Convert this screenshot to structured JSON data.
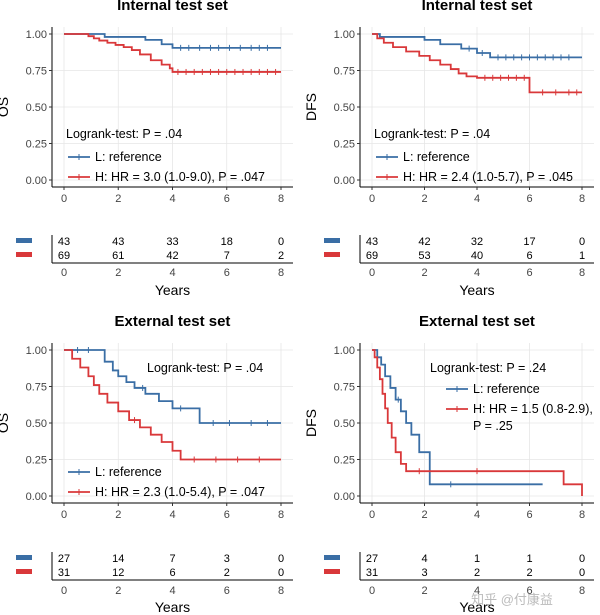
{
  "chart_data": [
    {
      "type": "line",
      "subtype": "kaplan-meier",
      "title": "Internal test set",
      "ylabel": "OS",
      "xlabel": "Years",
      "xlim": [
        0,
        8
      ],
      "ylim": [
        0,
        1
      ],
      "xticks": [
        "0",
        "2",
        "4",
        "6",
        "8"
      ],
      "yticks": [
        "0.00",
        "0.25",
        "0.50",
        "0.75",
        "1.00"
      ],
      "annotation": "Logrank-test: P =  .04",
      "annotation_anchor": "middle-left",
      "legend_anchor": "middle-left",
      "series": [
        {
          "name": "L: reference",
          "color": "#3a6ea5",
          "x": [
            0,
            1.2,
            1.5,
            2.6,
            3.0,
            3.6,
            4.0,
            8.0
          ],
          "y": [
            1.0,
            1.0,
            0.98,
            0.98,
            0.96,
            0.93,
            0.905,
            0.905
          ],
          "censor": [
            4.3,
            4.6,
            5.0,
            5.4,
            5.7,
            6.1,
            6.5,
            6.9,
            7.2,
            7.5
          ]
        },
        {
          "name": "H: HR = 3.0 (1.0-9.0), P = .047",
          "color": "#d9383a",
          "x": [
            0,
            0.6,
            0.9,
            1.1,
            1.3,
            1.6,
            1.9,
            2.2,
            2.5,
            2.8,
            3.2,
            3.6,
            3.9,
            4.0,
            8.0
          ],
          "y": [
            1.0,
            1.0,
            0.985,
            0.97,
            0.955,
            0.94,
            0.925,
            0.91,
            0.89,
            0.86,
            0.82,
            0.79,
            0.765,
            0.74,
            0.74
          ],
          "censor": [
            4.2,
            4.5,
            4.8,
            5.1,
            5.4,
            5.7,
            6.0,
            6.3,
            6.6,
            6.9,
            7.2,
            7.5,
            7.8
          ]
        }
      ],
      "risk_table": {
        "xlabel": "Years",
        "times": [
          "0",
          "2",
          "4",
          "6",
          "8"
        ],
        "rows": [
          {
            "color": "#3a6ea5",
            "counts": [
              "43",
              "43",
              "33",
              "18",
              "0"
            ]
          },
          {
            "color": "#d9383a",
            "counts": [
              "69",
              "61",
              "42",
              "7",
              "2"
            ]
          }
        ]
      }
    },
    {
      "type": "line",
      "subtype": "kaplan-meier",
      "title": "Internal test set",
      "ylabel": "DFS",
      "xlabel": "Years",
      "xlim": [
        0,
        8
      ],
      "ylim": [
        0,
        1
      ],
      "xticks": [
        "0",
        "2",
        "4",
        "6",
        "8"
      ],
      "yticks": [
        "0.00",
        "0.25",
        "0.50",
        "0.75",
        "1.00"
      ],
      "annotation": "Logrank-test: P =  .04",
      "annotation_anchor": "middle-left",
      "legend_anchor": "middle-left",
      "series": [
        {
          "name": "L: reference",
          "color": "#3a6ea5",
          "x": [
            0,
            0.3,
            1.0,
            2.0,
            2.6,
            3.4,
            4.0,
            4.5,
            8.0
          ],
          "y": [
            1.0,
            0.98,
            0.98,
            0.96,
            0.93,
            0.9,
            0.87,
            0.84,
            0.84
          ],
          "censor": [
            3.7,
            4.2,
            4.8,
            5.1,
            5.4,
            5.7,
            6.0,
            6.3,
            6.6,
            6.9,
            7.2,
            7.5
          ]
        },
        {
          "name": "H: HR = 2.4 (1.0-5.7), P =  .045",
          "color": "#d9383a",
          "x": [
            0,
            0.2,
            0.45,
            0.8,
            1.3,
            1.8,
            2.2,
            2.6,
            3.0,
            3.3,
            3.6,
            4.0,
            4.5,
            6.0,
            8.0
          ],
          "y": [
            1.0,
            0.97,
            0.94,
            0.91,
            0.88,
            0.85,
            0.82,
            0.79,
            0.76,
            0.73,
            0.71,
            0.7,
            0.7,
            0.6,
            0.6
          ],
          "censor": [
            4.3,
            4.6,
            4.9,
            5.2,
            5.5,
            5.8,
            6.5,
            7.0,
            7.5,
            7.8
          ]
        }
      ],
      "risk_table": {
        "xlabel": "Years",
        "times": [
          "0",
          "2",
          "4",
          "6",
          "8"
        ],
        "rows": [
          {
            "color": "#3a6ea5",
            "counts": [
              "43",
              "42",
              "32",
              "17",
              "0"
            ]
          },
          {
            "color": "#d9383a",
            "counts": [
              "69",
              "53",
              "40",
              "6",
              "1"
            ]
          }
        ]
      }
    },
    {
      "type": "line",
      "subtype": "kaplan-meier",
      "title": "External test set",
      "ylabel": "OS",
      "xlabel": "Years",
      "xlim": [
        0,
        8
      ],
      "ylim": [
        0,
        1
      ],
      "xticks": [
        "0",
        "2",
        "4",
        "6",
        "8"
      ],
      "yticks": [
        "0.00",
        "0.25",
        "0.50",
        "0.75",
        "1.00"
      ],
      "annotation": "Logrank-test: P =  .04",
      "annotation_anchor": "top-right",
      "legend_anchor": "bottom-left",
      "series": [
        {
          "name": "L: reference",
          "color": "#3a6ea5",
          "x": [
            0,
            1.2,
            1.5,
            1.8,
            2.0,
            2.3,
            2.6,
            3.0,
            3.5,
            4.0,
            5.0,
            8.0
          ],
          "y": [
            1.0,
            1.0,
            0.92,
            0.86,
            0.82,
            0.78,
            0.74,
            0.7,
            0.65,
            0.6,
            0.5,
            0.5
          ],
          "censor": [
            0.5,
            0.9,
            2.9,
            4.3,
            5.5,
            6.1,
            6.9,
            7.5
          ]
        },
        {
          "name": "H: HR = 2.3 (1.0-5.4), P =  .047",
          "color": "#d9383a",
          "x": [
            0,
            0.3,
            0.6,
            0.9,
            1.1,
            1.3,
            1.6,
            2.0,
            2.4,
            2.8,
            3.2,
            3.6,
            4.0,
            4.3,
            8.0
          ],
          "y": [
            1.0,
            0.94,
            0.88,
            0.82,
            0.76,
            0.7,
            0.64,
            0.58,
            0.52,
            0.47,
            0.42,
            0.37,
            0.31,
            0.25,
            0.25
          ],
          "censor": [
            2.6,
            4.8,
            5.6,
            6.4,
            7.2
          ]
        }
      ],
      "risk_table": {
        "xlabel": "Years",
        "times": [
          "0",
          "2",
          "4",
          "6",
          "8"
        ],
        "rows": [
          {
            "color": "#3a6ea5",
            "counts": [
              "27",
              "14",
              "7",
              "3",
              "0"
            ]
          },
          {
            "color": "#d9383a",
            "counts": [
              "31",
              "12",
              "6",
              "2",
              "0"
            ]
          }
        ]
      }
    },
    {
      "type": "line",
      "subtype": "kaplan-meier",
      "title": "External test set",
      "ylabel": "DFS",
      "xlabel": "Years",
      "xlim": [
        0,
        8
      ],
      "ylim": [
        0,
        1
      ],
      "xticks": [
        "0",
        "2",
        "4",
        "6",
        "8"
      ],
      "yticks": [
        "0.00",
        "0.25",
        "0.50",
        "0.75",
        "1.00"
      ],
      "annotation": "Logrank-test: P =  .24",
      "annotation_anchor": "top-right",
      "legend_anchor": "middle-right",
      "series": [
        {
          "name": "L: reference",
          "color": "#3a6ea5",
          "x": [
            0,
            0.2,
            0.35,
            0.5,
            0.7,
            0.9,
            1.1,
            1.3,
            1.5,
            1.8,
            2.2,
            6.5
          ],
          "y": [
            1.0,
            0.95,
            0.9,
            0.82,
            0.74,
            0.66,
            0.58,
            0.5,
            0.42,
            0.3,
            0.08,
            0.08
          ],
          "censor": [
            1.0,
            3.0
          ]
        },
        {
          "name": "H: HR = 1.5 (0.8-2.9),",
          "name_line2": "P =  .25",
          "color": "#d9383a",
          "x": [
            0,
            0.1,
            0.2,
            0.3,
            0.4,
            0.5,
            0.6,
            0.75,
            0.9,
            1.1,
            1.3,
            7.3,
            8.0
          ],
          "y": [
            1.0,
            0.95,
            0.88,
            0.8,
            0.7,
            0.6,
            0.5,
            0.4,
            0.3,
            0.22,
            0.17,
            0.08,
            0.0
          ],
          "censor": [
            1.8,
            4.0
          ]
        }
      ],
      "risk_table": {
        "xlabel": "Years",
        "times": [
          "0",
          "2",
          "4",
          "6",
          "8"
        ],
        "rows": [
          {
            "color": "#3a6ea5",
            "counts": [
              "27",
              "4",
              "1",
              "1",
              "0"
            ]
          },
          {
            "color": "#d9383a",
            "counts": [
              "31",
              "3",
              "2",
              "2",
              "0"
            ]
          }
        ]
      }
    }
  ],
  "watermark": "知乎 @付康益"
}
